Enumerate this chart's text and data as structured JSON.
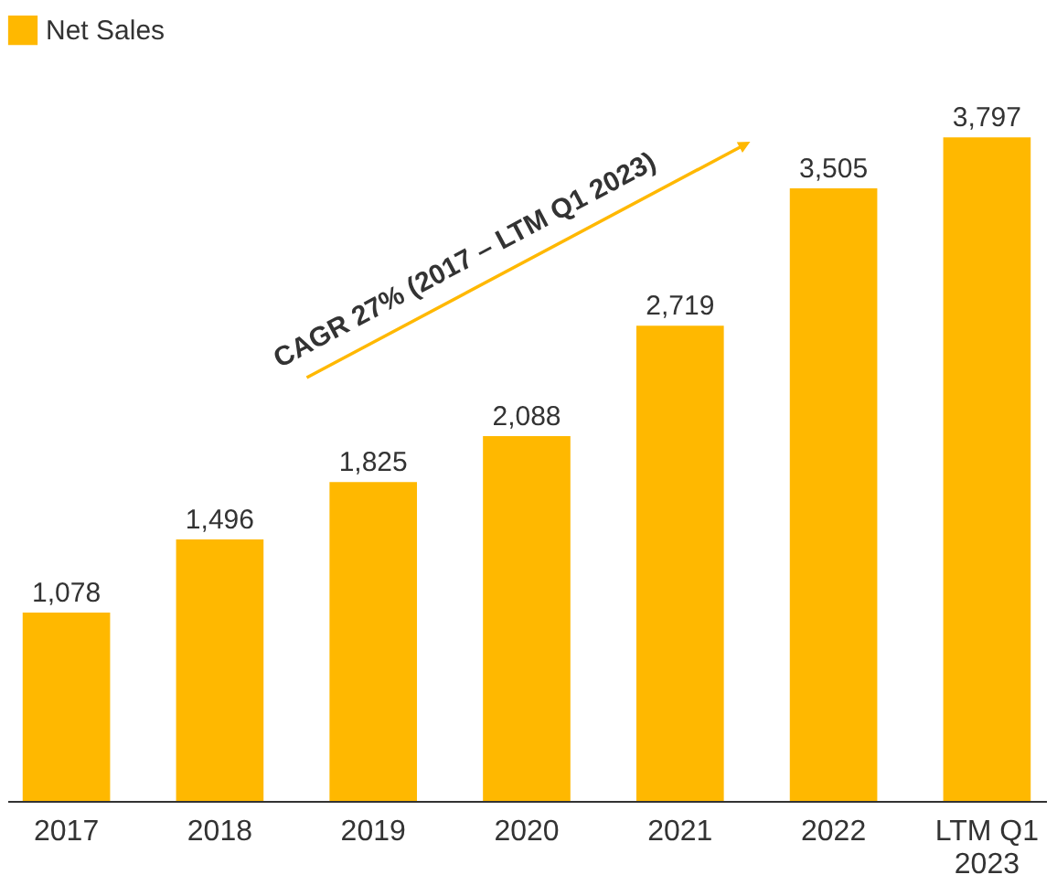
{
  "chart_data": {
    "type": "bar",
    "categories": [
      "2017",
      "2018",
      "2019",
      "2020",
      "2021",
      "2022",
      "LTM Q1 2023"
    ],
    "series": [
      {
        "name": "Net Sales",
        "color": "#ffb800",
        "values": [
          1078,
          1496,
          1825,
          2088,
          2719,
          3505,
          3797
        ],
        "value_labels": [
          "1,078",
          "1,496",
          "1,825",
          "2,088",
          "2,719",
          "3,505",
          "3,797"
        ]
      }
    ],
    "legend": "top left",
    "grid": false,
    "annotations": [
      "CAGR 27%   (2017 – LTM Q1 2023)"
    ]
  }
}
